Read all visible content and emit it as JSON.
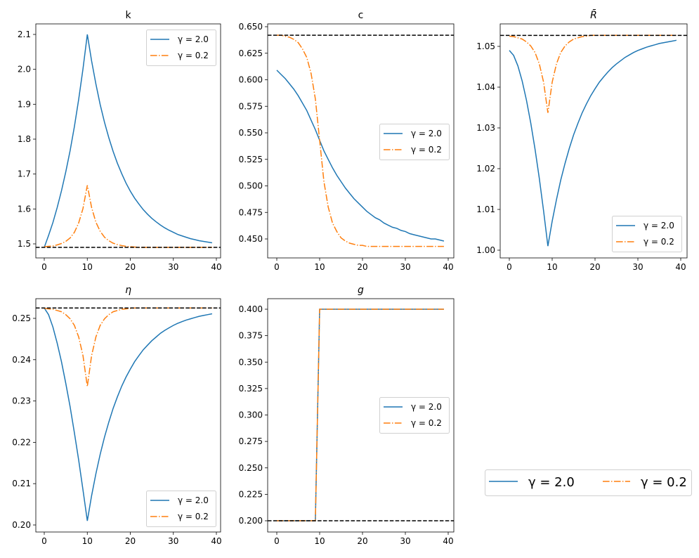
{
  "colors": {
    "series_1": "#1f77b4",
    "series_2": "#ff7f0e",
    "steady_state": "#000000"
  },
  "legend_labels": [
    "γ = 2.0",
    "γ = 0.2"
  ],
  "figure_legend": {
    "placement": "bottom-right",
    "labels": [
      "γ = 2.0",
      "γ = 0.2"
    ]
  },
  "chart_data": [
    {
      "type": "line",
      "title": "k",
      "legend": "upper-right",
      "xlim": [
        -2,
        41
      ],
      "ylim": [
        1.465,
        2.13
      ],
      "xticks": [
        "0",
        "10",
        "20",
        "30",
        "40"
      ],
      "yticks": [
        "1.5",
        "1.6",
        "1.7",
        "1.8",
        "1.9",
        "2.0",
        "2.1"
      ],
      "steady_state": 1.49,
      "series": [
        {
          "name": "γ = 2.0",
          "values": [
            1.49,
            1.524,
            1.561,
            1.604,
            1.652,
            1.706,
            1.767,
            1.836,
            1.914,
            2.001,
            2.1,
            2.024,
            1.958,
            1.899,
            1.848,
            1.804,
            1.765,
            1.731,
            1.701,
            1.674,
            1.651,
            1.631,
            1.614,
            1.598,
            1.585,
            1.573,
            1.563,
            1.554,
            1.546,
            1.539,
            1.533,
            1.527,
            1.523,
            1.519,
            1.515,
            1.512,
            1.509,
            1.507,
            1.505,
            1.503
          ]
        },
        {
          "name": "γ = 0.2",
          "values": [
            1.492,
            1.493,
            1.494,
            1.497,
            1.501,
            1.507,
            1.517,
            1.533,
            1.56,
            1.601,
            1.668,
            1.604,
            1.562,
            1.536,
            1.519,
            1.509,
            1.502,
            1.498,
            1.495,
            1.493,
            1.492,
            1.491,
            1.49,
            1.49,
            1.49,
            1.49,
            1.49,
            1.49,
            1.49,
            1.49,
            1.49,
            1.49,
            1.49,
            1.49,
            1.49,
            1.49,
            1.49,
            1.49,
            1.49,
            1.49
          ]
        }
      ]
    },
    {
      "type": "line",
      "title": "c",
      "legend": "center-right",
      "xlim": [
        -2,
        41
      ],
      "ylim": [
        0.435,
        0.652
      ],
      "xticks": [
        "0",
        "10",
        "20",
        "30",
        "40"
      ],
      "yticks": [
        "0.450",
        "0.475",
        "0.500",
        "0.525",
        "0.550",
        "0.575",
        "0.600",
        "0.625",
        "0.650"
      ],
      "steady_state": 0.642,
      "series": [
        {
          "name": "γ = 2.0",
          "values": [
            0.609,
            0.605,
            0.601,
            0.596,
            0.591,
            0.585,
            0.578,
            0.571,
            0.562,
            0.553,
            0.543,
            0.533,
            0.525,
            0.517,
            0.51,
            0.504,
            0.498,
            0.493,
            0.488,
            0.484,
            0.48,
            0.476,
            0.473,
            0.47,
            0.468,
            0.465,
            0.463,
            0.461,
            0.46,
            0.458,
            0.457,
            0.455,
            0.454,
            0.453,
            0.452,
            0.451,
            0.45,
            0.45,
            0.449,
            0.448
          ]
        },
        {
          "name": "γ = 0.2",
          "values": [
            0.642,
            0.642,
            0.641,
            0.64,
            0.638,
            0.635,
            0.629,
            0.621,
            0.606,
            0.582,
            0.543,
            0.504,
            0.48,
            0.465,
            0.457,
            0.451,
            0.448,
            0.446,
            0.445,
            0.444,
            0.444,
            0.443,
            0.443,
            0.443,
            0.443,
            0.443,
            0.443,
            0.443,
            0.443,
            0.443,
            0.443,
            0.443,
            0.443,
            0.443,
            0.443,
            0.443,
            0.443,
            0.443,
            0.443,
            0.443
          ]
        }
      ]
    },
    {
      "type": "line",
      "title": "R̄",
      "legend": "lower-right",
      "xlim": [
        -2,
        41
      ],
      "ylim": [
        0.998,
        1.055
      ],
      "xticks": [
        "0",
        "10",
        "20",
        "30",
        "40"
      ],
      "yticks": [
        "1.00",
        "1.01",
        "1.02",
        "1.03",
        "1.04",
        "1.05"
      ],
      "steady_state": 1.0527,
      "series": [
        {
          "name": "γ = 2.0",
          "values": [
            1.049,
            1.0478,
            1.0452,
            1.0415,
            1.0368,
            1.0312,
            1.0248,
            1.0176,
            1.0096,
            1.001,
            1.0071,
            1.0124,
            1.0172,
            1.0213,
            1.025,
            1.0283,
            1.0311,
            1.0337,
            1.0359,
            1.0379,
            1.0396,
            1.0412,
            1.0425,
            1.0437,
            1.0448,
            1.0457,
            1.0465,
            1.0473,
            1.0479,
            1.0485,
            1.049,
            1.0494,
            1.0498,
            1.0501,
            1.0504,
            1.0507,
            1.0509,
            1.0511,
            1.0513,
            1.0515
          ]
        },
        {
          "name": "γ = 0.2",
          "values": [
            1.0525,
            1.0524,
            1.0521,
            1.0518,
            1.0511,
            1.0501,
            1.0485,
            1.0457,
            1.0412,
            1.0337,
            1.0412,
            1.0457,
            1.0485,
            1.0501,
            1.0511,
            1.0518,
            1.0521,
            1.0524,
            1.0525,
            1.0527,
            1.0527,
            1.0527,
            1.0527,
            1.0527,
            1.0527,
            1.0527,
            1.0527,
            1.0527,
            1.0527,
            1.0527,
            1.0527,
            1.0527,
            1.0527,
            1.0527,
            1.0527,
            1.0527,
            1.0527,
            1.0527,
            1.0527,
            1.0527
          ]
        }
      ]
    },
    {
      "type": "line",
      "title": "η",
      "legend": "lower-right",
      "xlim": [
        -2,
        41
      ],
      "ylim": [
        0.198,
        0.255
      ],
      "xticks": [
        "0",
        "10",
        "20",
        "30",
        "40"
      ],
      "yticks": [
        "0.20",
        "0.21",
        "0.22",
        "0.23",
        "0.24",
        "0.25"
      ],
      "steady_state": 0.2525,
      "series": [
        {
          "name": "γ = 2.0",
          "values": [
            0.2525,
            0.2509,
            0.2479,
            0.244,
            0.2395,
            0.2343,
            0.2286,
            0.2223,
            0.2157,
            0.2085,
            0.201,
            0.2071,
            0.2124,
            0.2171,
            0.2213,
            0.2249,
            0.2282,
            0.231,
            0.2336,
            0.2358,
            0.2377,
            0.2395,
            0.241,
            0.2424,
            0.2435,
            0.2446,
            0.2455,
            0.2464,
            0.2471,
            0.2477,
            0.2483,
            0.2488,
            0.2492,
            0.2496,
            0.2499,
            0.2502,
            0.2505,
            0.2507,
            0.2509,
            0.2511
          ]
        },
        {
          "name": "γ = 0.2",
          "values": [
            0.2524,
            0.2523,
            0.2522,
            0.2519,
            0.2516,
            0.2509,
            0.2499,
            0.2483,
            0.2455,
            0.241,
            0.2335,
            0.241,
            0.2455,
            0.2483,
            0.2499,
            0.2509,
            0.2516,
            0.2519,
            0.2522,
            0.2523,
            0.2524,
            0.2525,
            0.2525,
            0.2525,
            0.2525,
            0.2525,
            0.2525,
            0.2525,
            0.2525,
            0.2525,
            0.2525,
            0.2525,
            0.2525,
            0.2525,
            0.2525,
            0.2525,
            0.2525,
            0.2525,
            0.2525,
            0.2525
          ]
        }
      ]
    },
    {
      "type": "line",
      "title": "g",
      "legend": "center-right",
      "xlim": [
        -2,
        41
      ],
      "ylim": [
        0.19,
        0.41
      ],
      "xticks": [
        "0",
        "10",
        "20",
        "30",
        "40"
      ],
      "yticks": [
        "0.200",
        "0.225",
        "0.250",
        "0.275",
        "0.300",
        "0.325",
        "0.350",
        "0.375",
        "0.400"
      ],
      "steady_state": 0.2,
      "series": [
        {
          "name": "γ = 2.0",
          "values": [
            0.2,
            0.2,
            0.2,
            0.2,
            0.2,
            0.2,
            0.2,
            0.2,
            0.2,
            0.2,
            0.4,
            0.4,
            0.4,
            0.4,
            0.4,
            0.4,
            0.4,
            0.4,
            0.4,
            0.4,
            0.4,
            0.4,
            0.4,
            0.4,
            0.4,
            0.4,
            0.4,
            0.4,
            0.4,
            0.4,
            0.4,
            0.4,
            0.4,
            0.4,
            0.4,
            0.4,
            0.4,
            0.4,
            0.4,
            0.4
          ]
        },
        {
          "name": "γ = 0.2",
          "values": [
            0.2,
            0.2,
            0.2,
            0.2,
            0.2,
            0.2,
            0.2,
            0.2,
            0.2,
            0.2,
            0.4,
            0.4,
            0.4,
            0.4,
            0.4,
            0.4,
            0.4,
            0.4,
            0.4,
            0.4,
            0.4,
            0.4,
            0.4,
            0.4,
            0.4,
            0.4,
            0.4,
            0.4,
            0.4,
            0.4,
            0.4,
            0.4,
            0.4,
            0.4,
            0.4,
            0.4,
            0.4,
            0.4,
            0.4,
            0.4
          ]
        }
      ]
    }
  ]
}
